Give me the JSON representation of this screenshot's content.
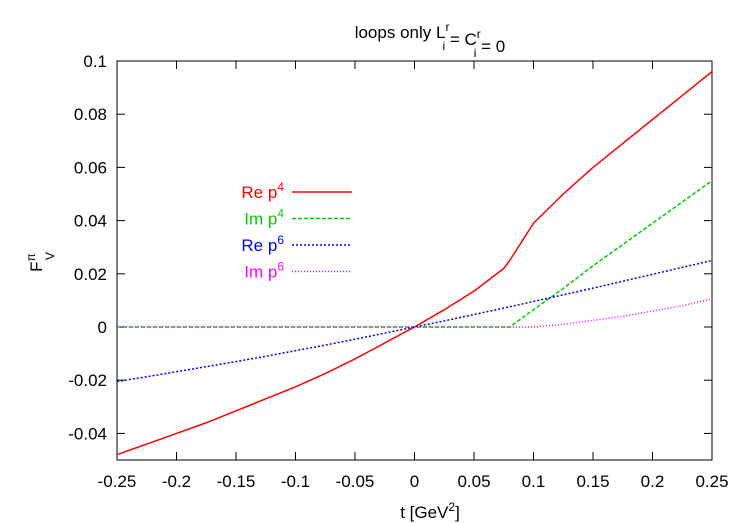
{
  "chart_data": {
    "type": "line",
    "title": [
      {
        "text": "loops only L"
      },
      {
        "sup": "r",
        "sub": "i"
      },
      {
        "text": " = C"
      },
      {
        "sup": "r",
        "sub": "i"
      },
      {
        "text": " = 0"
      }
    ],
    "xlabel": [
      {
        "text": "t    [GeV"
      },
      {
        "sup": "2"
      },
      {
        "text": "]"
      }
    ],
    "ylabel": [
      {
        "text": "F"
      },
      {
        "sup": "π",
        "sub": "V"
      }
    ],
    "x": [
      -0.25,
      -0.225,
      -0.2,
      -0.175,
      -0.15,
      -0.125,
      -0.1,
      -0.075,
      -0.05,
      -0.025,
      0,
      0.025,
      0.05,
      0.075,
      0.08,
      0.1,
      0.125,
      0.15,
      0.175,
      0.2,
      0.225,
      0.25
    ],
    "series": [
      {
        "name": [
          {
            "text": "Re p"
          },
          {
            "sup": "4"
          }
        ],
        "color": "#ff0000",
        "dash": "none",
        "values": [
          -0.048,
          -0.044,
          -0.04,
          -0.036,
          -0.0315,
          -0.027,
          -0.0225,
          -0.0175,
          -0.012,
          -0.006,
          0,
          0.0065,
          0.0135,
          0.022,
          0.025,
          0.039,
          0.05,
          0.06,
          0.069,
          0.078,
          0.087,
          0.096
        ]
      },
      {
        "name": [
          {
            "text": "Im p"
          },
          {
            "sup": "4"
          }
        ],
        "color": "#00cc00",
        "dash": "4,2",
        "values": [
          0,
          0,
          0,
          0,
          0,
          0,
          0,
          0,
          0,
          0,
          0,
          0,
          0,
          0,
          0,
          0.0065,
          0.0145,
          0.023,
          0.031,
          0.039,
          0.047,
          0.055
        ]
      },
      {
        "name": [
          {
            "text": "Re p"
          },
          {
            "sup": "6"
          }
        ],
        "color": "#0000ff",
        "dash": "2,2",
        "values": [
          -0.0205,
          -0.0187,
          -0.0168,
          -0.0149,
          -0.013,
          -0.011,
          -0.0089,
          -0.0068,
          -0.0046,
          -0.0023,
          0,
          0.0023,
          0.0047,
          0.0071,
          0.0076,
          0.0096,
          0.0121,
          0.0146,
          0.0172,
          0.0198,
          0.0224,
          0.025
        ]
      },
      {
        "name": [
          {
            "text": "Im p"
          },
          {
            "sup": "6"
          }
        ],
        "color": "#ff00ff",
        "dash": "1,2",
        "values": [
          0,
          0,
          0,
          0,
          0,
          0,
          0,
          0,
          0,
          0,
          0,
          0,
          0,
          0,
          0,
          0,
          0.001,
          0.0025,
          0.004,
          0.006,
          0.008,
          0.0105
        ]
      }
    ],
    "xlim": [
      -0.25,
      0.25
    ],
    "ylim": [
      -0.05,
      0.1
    ],
    "xticks": [
      -0.25,
      -0.2,
      -0.15,
      -0.1,
      -0.05,
      0,
      0.05,
      0.1,
      0.15,
      0.2,
      0.25
    ],
    "yticks": [
      -0.04,
      -0.02,
      0,
      0.02,
      0.04,
      0.06,
      0.08,
      0.1
    ]
  }
}
